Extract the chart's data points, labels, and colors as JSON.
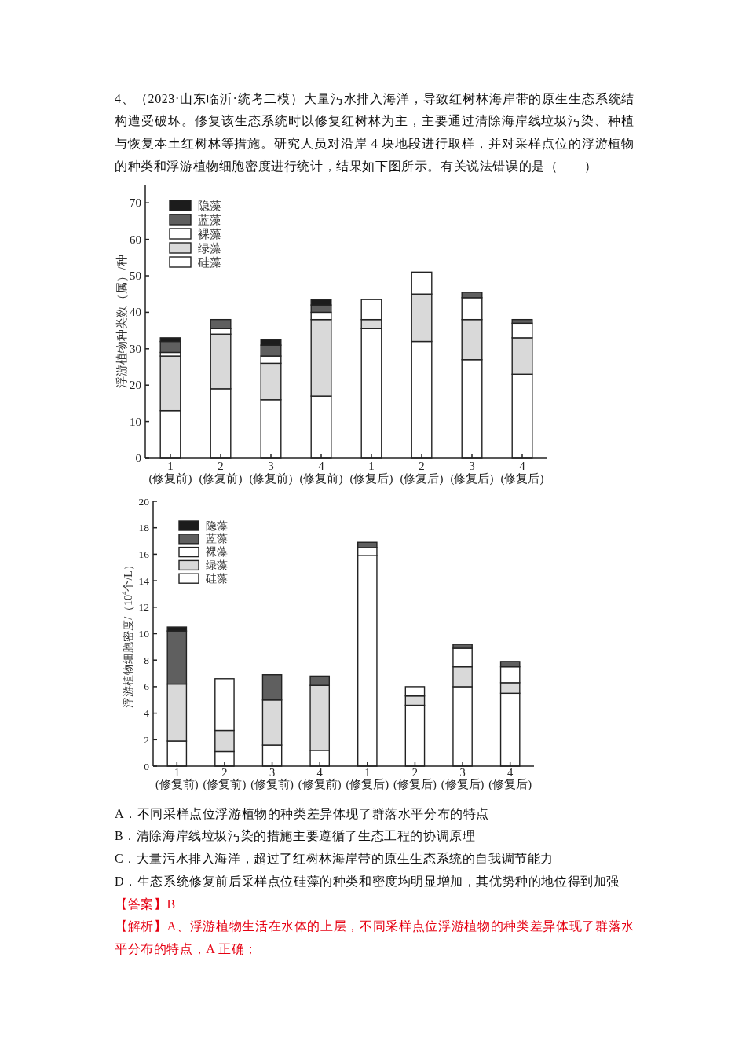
{
  "chart_data": [
    {
      "type": "bar",
      "title": "4、（2023·山东临沂·统考二模）大量污水排入海洋，导致红树林海岸带的原生生态系统结构遭受破坏。修复该生态系统时以修复红树林为主，主要通过清除海岸线垃圾污染、种植与恢复本土红树林等措施。研究人员对沿岸 4 块地段进行取样，并对采样点位的浮游植物的种类和浮游植物细胞密度进行统计，结果如下图所示。有关说法错误的是（　　）",
      "ylabel": "浮游植物种类数（属）/种",
      "categories": [
        "1\n(修复前)",
        "2\n(修复前)",
        "3\n(修复前)",
        "4\n(修复前)",
        "1\n(修复后)",
        "2\n(修复后)",
        "3\n(修复后)",
        "4\n(修复后)"
      ],
      "stacked": true,
      "ylim": [
        0,
        75
      ],
      "yticks": [
        0,
        10,
        20,
        30,
        40,
        50,
        60,
        70
      ],
      "legend": "top left",
      "series": [
        {
          "name": "硅藻",
          "color": "#ffffff",
          "values": [
            13,
            19,
            16,
            17,
            35.5,
            32,
            27,
            23
          ]
        },
        {
          "name": "绿藻",
          "color": "#d9d9d9",
          "values": [
            15,
            15,
            10,
            21,
            2.5,
            13,
            11,
            10
          ]
        },
        {
          "name": "裸藻",
          "color": "#ffffff",
          "values": [
            1,
            1.5,
            2,
            2,
            5.5,
            6,
            6,
            4
          ]
        },
        {
          "name": "蓝藻",
          "color": "#5f5f5f",
          "values": [
            3,
            2.5,
            3,
            2,
            null,
            null,
            1.5,
            1
          ]
        },
        {
          "name": "隐藻",
          "color": "#1c1c1c",
          "values": [
            1,
            null,
            1.5,
            1.5,
            null,
            null,
            null,
            null
          ]
        }
      ]
    },
    {
      "type": "bar",
      "ylabel": "浮游植物细胞密度/（10$^{4}$个/L）",
      "categories": [
        "1\n(修复前)",
        "2\n(修复前)",
        "3\n(修复前)",
        "4\n(修复前)",
        "1\n(修复后)",
        "2\n(修复后)",
        "3\n(修复后)",
        "4\n(修复后)"
      ],
      "stacked": true,
      "ylim": [
        0,
        20
      ],
      "yticks": [
        0,
        2,
        4,
        6,
        8,
        10,
        12,
        14,
        16,
        18,
        20
      ],
      "legend": "top left",
      "series": [
        {
          "name": "硅藻",
          "color": "#ffffff",
          "values": [
            1.9,
            1.1,
            1.6,
            1.2,
            15.9,
            4.6,
            6.0,
            5.5
          ]
        },
        {
          "name": "绿藻",
          "color": "#d9d9d9",
          "values": [
            4.3,
            1.6,
            3.4,
            4.9,
            null,
            0.7,
            1.5,
            0.8
          ]
        },
        {
          "name": "裸藻",
          "color": "#ffffff",
          "values": [
            null,
            3.9,
            null,
            null,
            0.6,
            0.7,
            1.4,
            1.2
          ]
        },
        {
          "name": "蓝藻",
          "color": "#5f5f5f",
          "values": [
            4.0,
            null,
            1.9,
            0.7,
            0.4,
            null,
            0.3,
            0.4
          ]
        },
        {
          "name": "隐藻",
          "color": "#1c1c1c",
          "values": [
            0.3,
            null,
            null,
            null,
            null,
            null,
            null,
            null
          ]
        }
      ],
      "annotations": [
        "A．不同采样点位浮游植物的种类差异体现了群落水平分布的特点",
        "B．清除海岸线垃圾污染的措施主要遵循了生态工程的协调原理",
        "C．大量污水排入海洋，超过了红树林海岸带的原生生态系统的自我调节能力",
        "D．生态系统修复前后采样点位硅藻的种类和密度均明显增加，其优势种的地位得到加强",
        "【答案】B",
        "【解析】A、浮游植物生活在水体的上层，不同采样点位浮游植物的种类差异体现了群落水平分布的特点，A 正确；"
      ]
    }
  ]
}
